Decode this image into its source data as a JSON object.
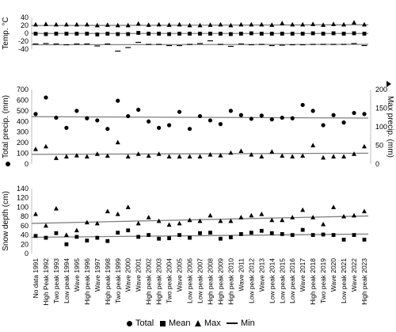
{
  "chart_data": [
    {
      "type": "scatter",
      "ylabel": "Temp. °C",
      "ylim": [
        -40,
        40
      ],
      "yticks": [
        -40,
        -20,
        0,
        20,
        40
      ],
      "series": [
        {
          "name": "Max",
          "marker": "triangle",
          "values": [
            22,
            23,
            22,
            22,
            22,
            22,
            20,
            21,
            20,
            20,
            24,
            21,
            22,
            21,
            22,
            20,
            20,
            21,
            22,
            20,
            22,
            22,
            22,
            21,
            25,
            22,
            22,
            23,
            21,
            23,
            22,
            27,
            22
          ]
        },
        {
          "name": "Mean",
          "marker": "square",
          "values": [
            -1,
            -2,
            -1,
            -1,
            -1,
            -1,
            -3,
            -1,
            -2,
            -2,
            1,
            -1,
            -1,
            -2,
            -1,
            -1,
            -1,
            -1,
            -1,
            -2,
            -1,
            0,
            -1,
            -1,
            -1,
            -1,
            -1,
            0,
            -1,
            0,
            -1,
            0,
            -1
          ]
        },
        {
          "name": "Min",
          "marker": "dash",
          "values": [
            -27,
            -26,
            -27,
            -29,
            -27,
            -27,
            -32,
            -27,
            -45,
            -36,
            -23,
            -28,
            -28,
            -31,
            -31,
            -28,
            -26,
            -19,
            -28,
            -33,
            -27,
            -29,
            -28,
            -31,
            -30,
            -29,
            -29,
            -28,
            -28,
            -28,
            -28,
            -26,
            -31
          ]
        }
      ],
      "trend": [
        {
          "y0": 19.5,
          "y1": 21.5
        },
        {
          "y0": -0.5,
          "y1": -0.5
        },
        {
          "y0": -29,
          "y1": -28
        }
      ]
    },
    {
      "type": "scatter",
      "ylabel": "Total precip. (mm)",
      "y2label": "Max precip. (mm)",
      "ylim": [
        0,
        700
      ],
      "yticks": [
        0,
        100,
        200,
        300,
        400,
        500,
        600,
        700
      ],
      "y2lim": [
        0,
        200
      ],
      "y2ticks": [
        0,
        50,
        100,
        150,
        200
      ],
      "series": [
        {
          "name": "Total",
          "marker": "circle",
          "axis": "left",
          "values": [
            470,
            625,
            435,
            340,
            500,
            430,
            410,
            330,
            595,
            450,
            510,
            400,
            340,
            365,
            490,
            330,
            450,
            410,
            375,
            500,
            460,
            425,
            455,
            420,
            435,
            430,
            555,
            500,
            365,
            460,
            390,
            480,
            470
          ]
        },
        {
          "name": "Max",
          "marker": "triangle",
          "axis": "right",
          "values": [
            40,
            47,
            16,
            20,
            23,
            20,
            27,
            22,
            58,
            20,
            27,
            22,
            27,
            20,
            20,
            20,
            20,
            25,
            23,
            30,
            35,
            25,
            20,
            33,
            22,
            20,
            22,
            50,
            17,
            20,
            20,
            27,
            47
          ]
        }
      ],
      "trend": [
        {
          "axis": "left",
          "y0": 445,
          "y1": 432
        },
        {
          "axis": "right",
          "y0": 26,
          "y1": 29
        }
      ]
    },
    {
      "type": "scatter",
      "ylabel": "Snow depth (cm)",
      "ylim": [
        0,
        140
      ],
      "yticks": [
        0,
        20,
        40,
        60,
        80,
        100,
        120,
        140
      ],
      "series": [
        {
          "name": "Total",
          "marker": "circle",
          "values": []
        },
        {
          "name": "Mean",
          "marker": "square",
          "values": [
            38,
            34,
            44,
            20,
            36,
            28,
            34,
            27,
            45,
            50,
            36,
            40,
            32,
            33,
            40,
            34,
            44,
            45,
            32,
            35,
            42,
            45,
            49,
            44,
            42,
            40,
            51,
            40,
            41,
            40,
            30,
            40,
            30
          ]
        },
        {
          "name": "Max",
          "marker": "triangle",
          "values": [
            85,
            60,
            97,
            40,
            50,
            67,
            65,
            91,
            85,
            100,
            65,
            78,
            70,
            62,
            65,
            72,
            70,
            82,
            70,
            70,
            78,
            82,
            85,
            72,
            72,
            78,
            94,
            78,
            63,
            100,
            80,
            82,
            91
          ]
        }
      ],
      "trend": [
        {
          "y0": 65,
          "y1": 81
        },
        {
          "y0": 35,
          "y1": 42
        }
      ]
    }
  ],
  "categories": [
    "No data 1991",
    "High Peak 1992",
    "Two peak 1993",
    "Low peak 1994",
    "Wave 1995",
    "High peak 1996",
    "Wave 1997",
    "High peak 1998",
    "Two peak 1999",
    "Wave 2000",
    "Wave 2001",
    "High peak 2002",
    "High peak 2003",
    "Two peak 2004",
    "Wave 2005",
    "Low peak 2006",
    "Low peak 2007",
    "High peak 2008",
    "High peak 2009",
    "High peak 2010",
    "Wave 2011",
    "Low peak 2012",
    "Wave 2013",
    "Low peak 2014",
    "Low peak 2015",
    "Low peak 2016",
    "Wave 2017",
    "High peak 2018",
    "Two peak 2019",
    "Wave 2020",
    "Low peak 2021",
    "Wave 2022",
    "High peak 2023"
  ],
  "legend": [
    {
      "label": "Total",
      "marker": "circle"
    },
    {
      "label": "Mean",
      "marker": "square"
    },
    {
      "label": "Max",
      "marker": "triangle"
    },
    {
      "label": "Min",
      "marker": "line"
    }
  ]
}
